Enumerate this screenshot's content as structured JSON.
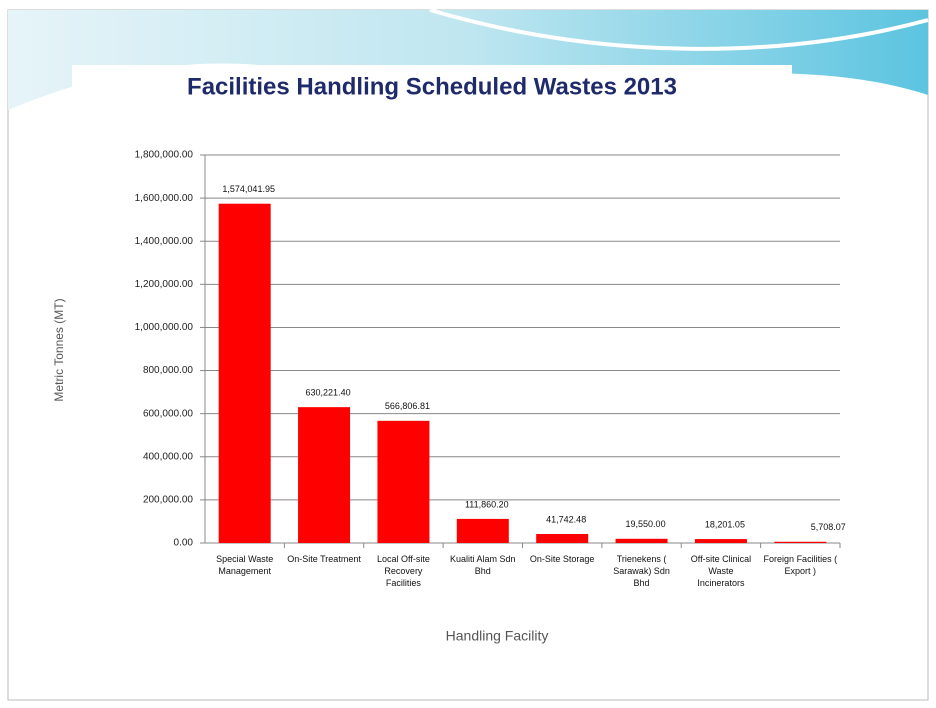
{
  "chart_data": {
    "type": "bar",
    "title": "Facilities Handling Scheduled Wastes  2013",
    "y_label": "Metric Tonnes (MT)",
    "x_label": "Handling Facility",
    "categories": [
      "Special Waste Management",
      "On-Site Treatment",
      "Local Off-site Recovery Facilities",
      "Kualiti Alam Sdn Bhd",
      "On-Site Storage",
      "Trienekens ( Sarawak) Sdn Bhd",
      "Off-site Clinical Waste Incinerators",
      "Foreign Facilities ( Export )"
    ],
    "values": [
      1574041.95,
      630221.4,
      566806.81,
      111860.2,
      41742.48,
      19550.0,
      18201.05,
      5708.07
    ],
    "value_labels": [
      "1,574,041.95",
      "630,221.40",
      "566,806.81",
      "111,860.20",
      "41,742.48",
      "19,550.00",
      "18,201.05",
      "5,708.07"
    ],
    "color": "#ff0000",
    "ylim": [
      0,
      1800000
    ],
    "yticks": [
      {
        "value": 0,
        "label": "0.00"
      },
      {
        "value": 200000,
        "label": "200,000.00"
      },
      {
        "value": 400000,
        "label": "400,000.00"
      },
      {
        "value": 600000,
        "label": "600,000.00"
      },
      {
        "value": 800000,
        "label": "800,000.00"
      },
      {
        "value": 1000000,
        "label": "1,000,000.00"
      },
      {
        "value": 1200000,
        "label": "1,200,000.00"
      },
      {
        "value": 1400000,
        "label": "1,400,000.00"
      },
      {
        "value": 1600000,
        "label": "1,600,000.00"
      },
      {
        "value": 1800000,
        "label": "1,800,000.00"
      }
    ],
    "grid": true
  }
}
